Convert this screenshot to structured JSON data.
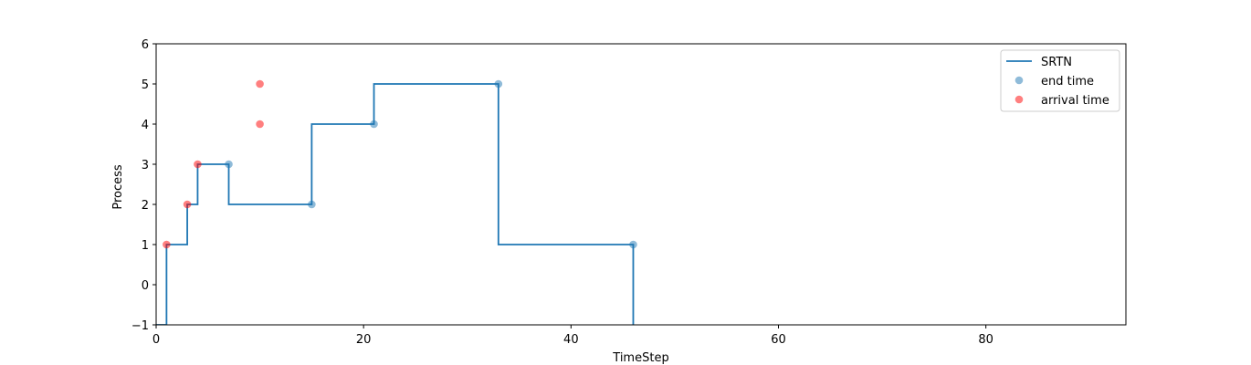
{
  "chart_data": {
    "type": "line",
    "xlabel": "TimeStep",
    "ylabel": "Process",
    "xlim": [
      0,
      93.5
    ],
    "ylim": [
      -1,
      6
    ],
    "xticks": [
      "0",
      "20",
      "40",
      "60",
      "80"
    ],
    "xtick_values": [
      0,
      20,
      40,
      60,
      80
    ],
    "yticks": [
      "−1",
      "0",
      "1",
      "2",
      "3",
      "4",
      "5",
      "6"
    ],
    "ytick_values": [
      -1,
      0,
      1,
      2,
      3,
      4,
      5,
      6
    ],
    "grid": false,
    "legend_position": "top-right",
    "series": [
      {
        "name": "SRTN",
        "kind": "step",
        "color": "#1f77b4",
        "x": [
          0,
          1,
          1,
          3,
          3,
          4,
          4,
          7,
          7,
          15,
          15,
          21,
          21,
          33,
          33,
          46,
          46
        ],
        "y": [
          -1,
          -1,
          1,
          1,
          2,
          2,
          3,
          3,
          2,
          2,
          4,
          4,
          5,
          5,
          1,
          1,
          -1
        ]
      },
      {
        "name": "end time",
        "kind": "scatter",
        "color": "#1f77b4",
        "alpha": 0.5,
        "x": [
          7,
          15,
          21,
          33,
          46
        ],
        "y": [
          3,
          2,
          4,
          5,
          1
        ]
      },
      {
        "name": "arrival time",
        "kind": "scatter",
        "color": "#ff0000",
        "alpha": 0.5,
        "x": [
          1,
          3,
          4,
          10,
          10
        ],
        "y": [
          1,
          2,
          3,
          4,
          5
        ]
      }
    ]
  }
}
